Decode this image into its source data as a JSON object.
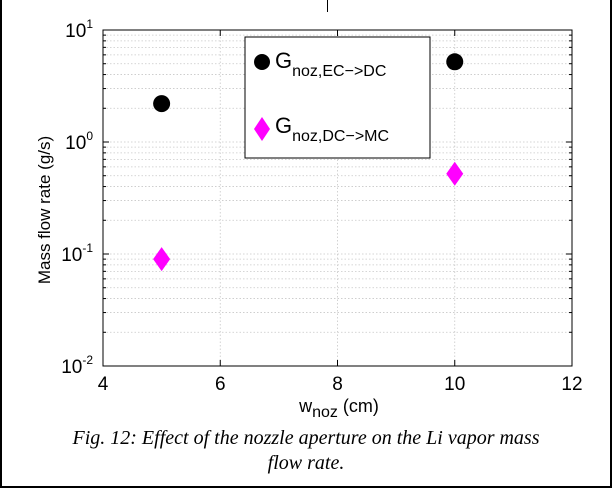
{
  "chart_data": {
    "type": "scatter",
    "title": "",
    "xlabel": {
      "base": "w",
      "sub": "noz",
      "unit": " (cm)"
    },
    "ylabel": "Mass flow rate (g/s)",
    "xlim": [
      4,
      12
    ],
    "ylim": [
      0.01,
      10
    ],
    "yscale": "log",
    "grid": true,
    "legend": "top-center",
    "x_ticks": [
      "4",
      "6",
      "8",
      "10",
      "12"
    ],
    "y_ticks": [
      {
        "base": "10",
        "exp": "-2"
      },
      {
        "base": "10",
        "exp": "-1"
      },
      {
        "base": "10",
        "exp": "0"
      },
      {
        "base": "10",
        "exp": "1"
      }
    ],
    "series": [
      {
        "label_main": "G",
        "label_sub": "noz,EC−>DC",
        "marker": "circle",
        "color": "#000000",
        "x": [
          5,
          10
        ],
        "y": [
          2.2,
          5.2
        ]
      },
      {
        "label_main": "G",
        "label_sub": "noz,DC−>MC",
        "marker": "diamond",
        "color": "#ff00ff",
        "x": [
          5,
          10
        ],
        "y": [
          0.09,
          0.52
        ]
      }
    ]
  },
  "caption": {
    "line1": "Fig. 12: Effect of the nozzle aperture on the Li vapor mass",
    "line2": "flow rate."
  }
}
